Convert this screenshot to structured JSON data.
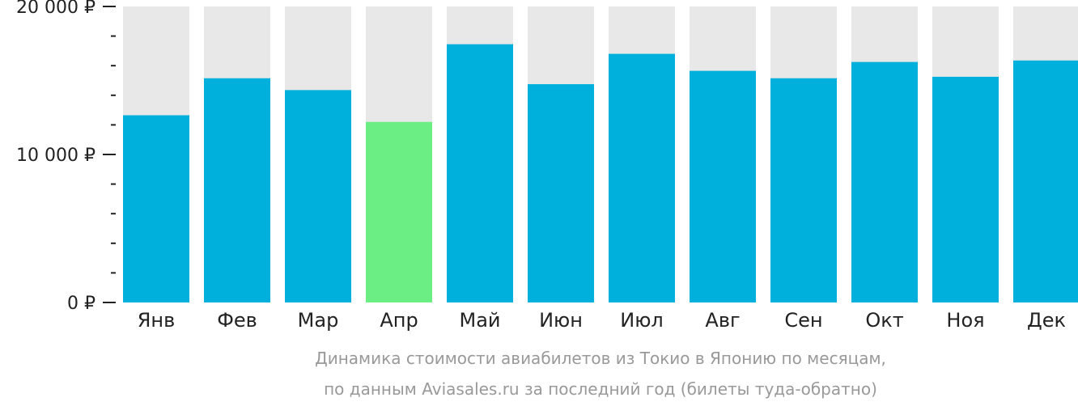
{
  "chart_data": {
    "type": "bar",
    "categories": [
      "Янв",
      "Фев",
      "Мар",
      "Апр",
      "Май",
      "Июн",
      "Июл",
      "Авг",
      "Сен",
      "Окт",
      "Ноя",
      "Дек"
    ],
    "values": [
      12650,
      15150,
      14350,
      12200,
      17450,
      14750,
      16800,
      15650,
      15150,
      16250,
      15250,
      16350
    ],
    "highlight_index": 3,
    "ylim": [
      0,
      20000
    ],
    "ytick_labels": [
      {
        "value": 20000,
        "label": "20 000 ₽"
      },
      {
        "value": 10000,
        "label": "10 000 ₽"
      },
      {
        "value": 0,
        "label": "0 ₽"
      }
    ],
    "minor_tick_step": 2000,
    "caption_lines": [
      "Динамика стоимости авиабилетов из Токио в Японию по месяцам,",
      "по данным Aviasales.ru за последний год (билеты туда-обратно)"
    ],
    "xlabel": "",
    "ylabel": "",
    "colors": {
      "bar": "#00b0dc",
      "highlight": "#6bef85",
      "track": "#e8e8e8",
      "axis_text": "#222222",
      "caption": "#999999"
    }
  }
}
